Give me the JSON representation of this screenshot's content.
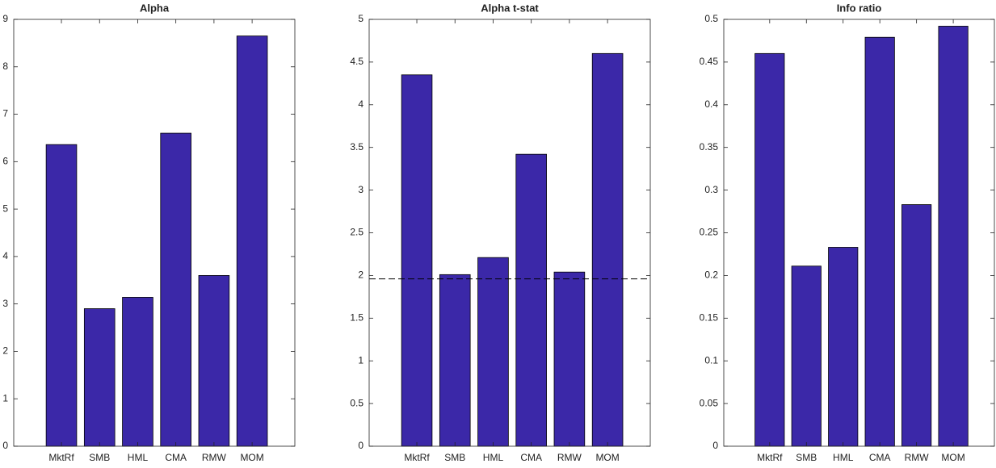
{
  "chart_data": [
    {
      "type": "bar",
      "title": "Alpha",
      "categories": [
        "MktRf",
        "SMB",
        "HML",
        "CMA",
        "RMW",
        "MOM"
      ],
      "values": [
        6.36,
        2.9,
        3.14,
        6.6,
        3.6,
        8.65
      ],
      "color": "#3b28a8",
      "ylim": [
        0,
        9
      ],
      "yticks": [
        0,
        1,
        2,
        3,
        4,
        5,
        6,
        7,
        8,
        9
      ]
    },
    {
      "type": "bar",
      "title": "Alpha t-stat",
      "categories": [
        "MktRf",
        "SMB",
        "HML",
        "CMA",
        "RMW",
        "MOM"
      ],
      "values": [
        4.35,
        2.01,
        2.21,
        3.42,
        2.04,
        4.6
      ],
      "color": "#3b28a8",
      "ylim": [
        0,
        5
      ],
      "yticks": [
        0,
        0.5,
        1,
        1.5,
        2,
        2.5,
        3,
        3.5,
        4,
        4.5,
        5
      ],
      "reference_line": 1.96
    },
    {
      "type": "bar",
      "title": "Info ratio",
      "categories": [
        "MktRf",
        "SMB",
        "HML",
        "CMA",
        "RMW",
        "MOM"
      ],
      "values": [
        0.46,
        0.211,
        0.233,
        0.479,
        0.283,
        0.492
      ],
      "color": "#3b28a8",
      "ylim": [
        0,
        0.5
      ],
      "yticks": [
        0,
        0.05,
        0.1,
        0.15,
        0.2,
        0.25,
        0.3,
        0.35,
        0.4,
        0.45,
        0.5
      ]
    }
  ]
}
